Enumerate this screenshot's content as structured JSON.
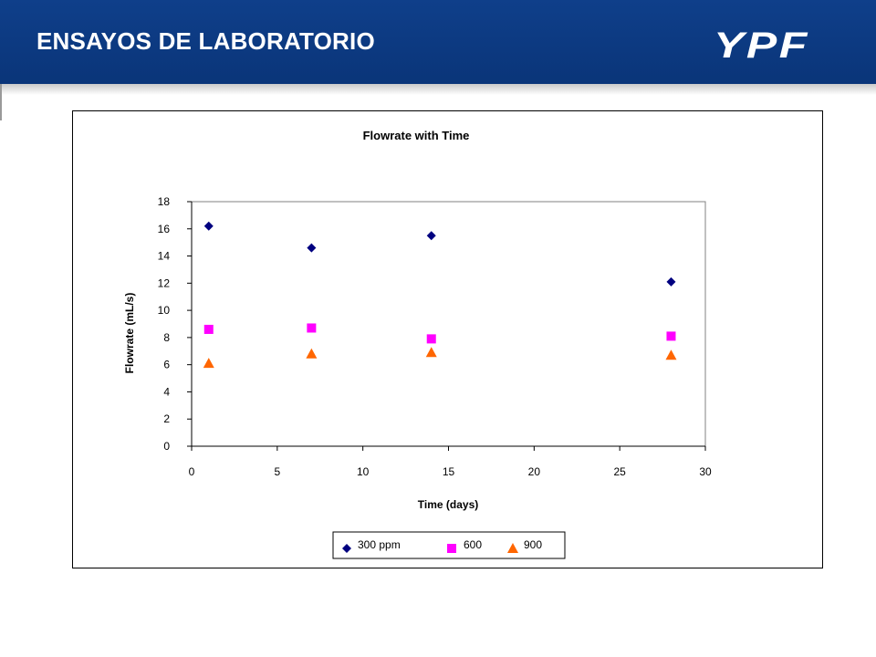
{
  "slide": {
    "title": "ENSAYOS DE LABORATORIO",
    "logo_text": "YPF",
    "header_color": "#0b3a80"
  },
  "chart_data": {
    "type": "scatter",
    "title": "Flowrate with Time",
    "xlabel": "Time (days)",
    "ylabel": "Flowrate (mL/s)",
    "xlim": [
      0,
      30
    ],
    "ylim": [
      0,
      18
    ],
    "x_ticks": [
      0,
      5,
      10,
      15,
      20,
      25,
      30
    ],
    "y_ticks": [
      0,
      2,
      4,
      6,
      8,
      10,
      12,
      14,
      16,
      18
    ],
    "grid": false,
    "legend_position": "bottom",
    "series": [
      {
        "name": "300 ppm",
        "marker": "diamond",
        "color": "#000080",
        "x": [
          1,
          7,
          14,
          28
        ],
        "y": [
          16.2,
          14.6,
          15.5,
          12.1
        ]
      },
      {
        "name": "600",
        "marker": "square",
        "color": "#ff00ff",
        "x": [
          1,
          7,
          14,
          28
        ],
        "y": [
          8.6,
          8.7,
          7.9,
          8.1
        ]
      },
      {
        "name": "900",
        "marker": "triangle",
        "color": "#ff6600",
        "x": [
          1,
          7,
          14,
          28
        ],
        "y": [
          6.1,
          6.8,
          6.9,
          6.7
        ]
      }
    ]
  }
}
